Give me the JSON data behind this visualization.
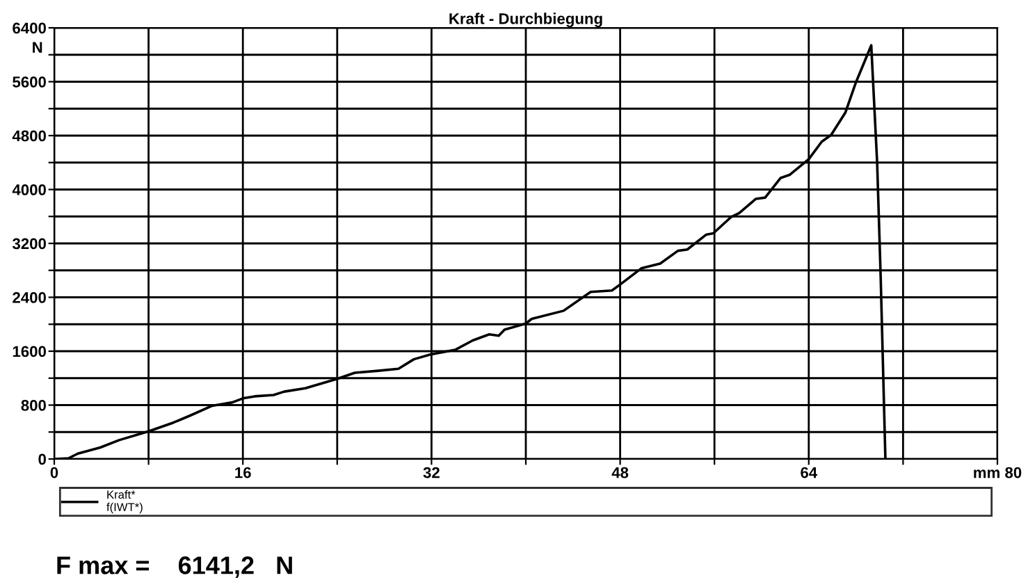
{
  "chart_data": {
    "type": "line",
    "title": "Kraft - Durchbiegung",
    "ylabel": "N",
    "series": [
      {
        "name": "Kraft*\nf(IWT*)",
        "color": "#000000",
        "x": [
          0,
          1.2,
          2.0,
          3.9,
          5.5,
          8,
          10.1,
          11.6,
          13.4,
          15.1,
          16,
          17,
          18.6,
          19.5,
          21.3,
          24,
          25.5,
          27.5,
          29.2,
          30.5,
          31.9,
          34,
          35.5,
          36.9,
          37.7,
          38.2,
          40,
          40.5,
          43.2,
          45.5,
          47.3,
          48,
          49.8,
          51.4,
          52.9,
          53.7,
          55.3,
          55.9,
          57.4,
          58.1,
          59.5,
          60.3,
          61.6,
          62.4,
          64,
          65.1,
          65.9,
          67.1,
          68,
          69.3,
          69.8,
          70.1,
          70.5
        ],
        "values": [
          0,
          10,
          80,
          170,
          280,
          410,
          540,
          650,
          790,
          840,
          900,
          930,
          950,
          1000,
          1050,
          1190,
          1280,
          1310,
          1340,
          1480,
          1550,
          1620,
          1760,
          1850,
          1830,
          1920,
          2010,
          2080,
          2200,
          2480,
          2500,
          2590,
          2830,
          2900,
          3090,
          3110,
          3330,
          3350,
          3590,
          3650,
          3860,
          3880,
          4170,
          4220,
          4450,
          4710,
          4810,
          5140,
          5590,
          6140,
          4400,
          2700,
          0
        ]
      }
    ],
    "xlim": [
      0,
      80
    ],
    "xticks": [
      0,
      {
        "value": 8,
        "label": null
      },
      16,
      {
        "value": 24,
        "label": null
      },
      32,
      {
        "value": 40,
        "label": null
      },
      48,
      {
        "value": 56,
        "label": null
      },
      64,
      {
        "value": 72,
        "label": null
      },
      {
        "value": 80,
        "label": "mm 80"
      }
    ],
    "ylim": [
      0,
      6400
    ],
    "yticks": [
      0,
      {
        "value": 400,
        "label": null
      },
      800,
      {
        "value": 1200,
        "label": null
      },
      1600,
      {
        "value": 2000,
        "label": null
      },
      2400,
      {
        "value": 2800,
        "label": null
      },
      3200,
      {
        "value": 3600,
        "label": null
      },
      4000,
      {
        "value": 4400,
        "label": null
      },
      4800,
      {
        "value": 5200,
        "label": null
      },
      5600,
      {
        "value": 6000,
        "label": null
      },
      6400
    ],
    "grid": true,
    "legend": "bottom",
    "line_style": "solid",
    "marker": "none",
    "annotations": [
      "F max =    6141,2   N"
    ]
  }
}
